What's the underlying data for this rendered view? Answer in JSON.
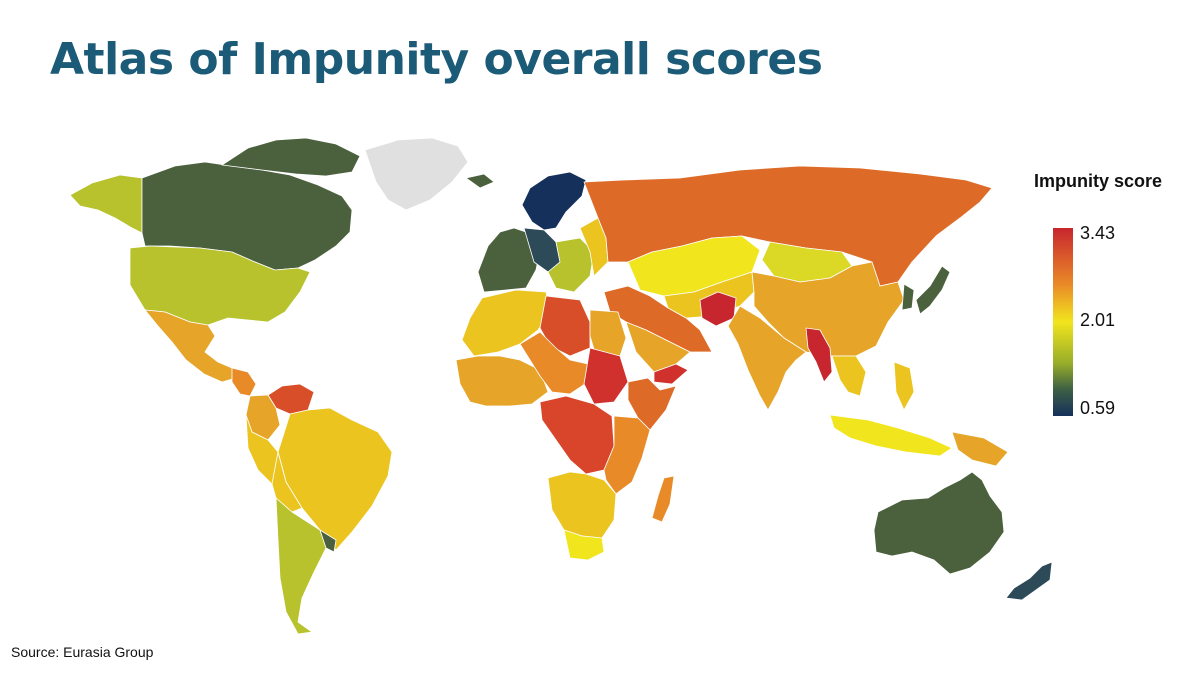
{
  "title": "Atlas of Impunity overall scores",
  "legend": {
    "title": "Impunity score",
    "max_label": "3.43",
    "mid_label": "2.01",
    "min_label": "0.59",
    "scale_colors": [
      "#c8262e",
      "#e98a28",
      "#f1e51d",
      "#97ad2a",
      "#3c5f44",
      "#15305b"
    ]
  },
  "source": "Source: Eurasia Group",
  "colors": {
    "title": "#1b5b78",
    "no_data": "#e0e0e0",
    "ocean": "#ffffff"
  },
  "regions": [
    {
      "name": "alaska",
      "color": "#b8c22c"
    },
    {
      "name": "canada",
      "color": "#4b613d"
    },
    {
      "name": "canada-arctic-islands",
      "color": "#4b613d"
    },
    {
      "name": "greenland",
      "color": "#e0e0e0"
    },
    {
      "name": "united-states",
      "color": "#b8c22c"
    },
    {
      "name": "mexico",
      "color": "#e6a428"
    },
    {
      "name": "central-america",
      "color": "#e98a28"
    },
    {
      "name": "venezuela",
      "color": "#d84e29"
    },
    {
      "name": "colombia",
      "color": "#e6a428"
    },
    {
      "name": "brazil",
      "color": "#ecc41f"
    },
    {
      "name": "peru",
      "color": "#ecc41f"
    },
    {
      "name": "bolivia",
      "color": "#ecc41f"
    },
    {
      "name": "argentina",
      "color": "#b8c22c"
    },
    {
      "name": "uruguay",
      "color": "#4b613d"
    },
    {
      "name": "scandinavia",
      "color": "#15305b"
    },
    {
      "name": "iceland",
      "color": "#4b613d"
    },
    {
      "name": "western-europe",
      "color": "#4b613d"
    },
    {
      "name": "central-europe",
      "color": "#2c4a57"
    },
    {
      "name": "eastern-europe",
      "color": "#b8c22c"
    },
    {
      "name": "ukraine",
      "color": "#ecc41f"
    },
    {
      "name": "russia",
      "color": "#de6a28"
    },
    {
      "name": "kazakhstan",
      "color": "#f1e51d"
    },
    {
      "name": "central-asia",
      "color": "#ecc41f"
    },
    {
      "name": "mongolia",
      "color": "#dbd826"
    },
    {
      "name": "china",
      "color": "#e6a428"
    },
    {
      "name": "korea",
      "color": "#4b613d"
    },
    {
      "name": "japan",
      "color": "#4b613d"
    },
    {
      "name": "middle-east",
      "color": "#de6a28"
    },
    {
      "name": "saudi-arabia",
      "color": "#e6a428"
    },
    {
      "name": "yemen",
      "color": "#d0312c"
    },
    {
      "name": "afghanistan",
      "color": "#c8262e"
    },
    {
      "name": "india",
      "color": "#e6a428"
    },
    {
      "name": "myanmar",
      "color": "#c8262e"
    },
    {
      "name": "southeast-asia",
      "color": "#ecc41f"
    },
    {
      "name": "indonesia",
      "color": "#f1e51d"
    },
    {
      "name": "philippines",
      "color": "#ecc41f"
    },
    {
      "name": "new-guinea",
      "color": "#e6a428"
    },
    {
      "name": "north-africa",
      "color": "#ecc41f"
    },
    {
      "name": "libya",
      "color": "#d84e29"
    },
    {
      "name": "egypt",
      "color": "#e6a428"
    },
    {
      "name": "west-africa",
      "color": "#e6a428"
    },
    {
      "name": "sahel",
      "color": "#e98a28"
    },
    {
      "name": "sudan",
      "color": "#d0312c"
    },
    {
      "name": "horn-of-africa",
      "color": "#de6a28"
    },
    {
      "name": "central-africa",
      "color": "#d8452a"
    },
    {
      "name": "east-africa",
      "color": "#e98a28"
    },
    {
      "name": "southern-africa",
      "color": "#ecc41f"
    },
    {
      "name": "south-africa",
      "color": "#f1e51d"
    },
    {
      "name": "madagascar",
      "color": "#e98a28"
    },
    {
      "name": "australia",
      "color": "#4b613d"
    },
    {
      "name": "new-zealand",
      "color": "#2c4a57"
    }
  ]
}
